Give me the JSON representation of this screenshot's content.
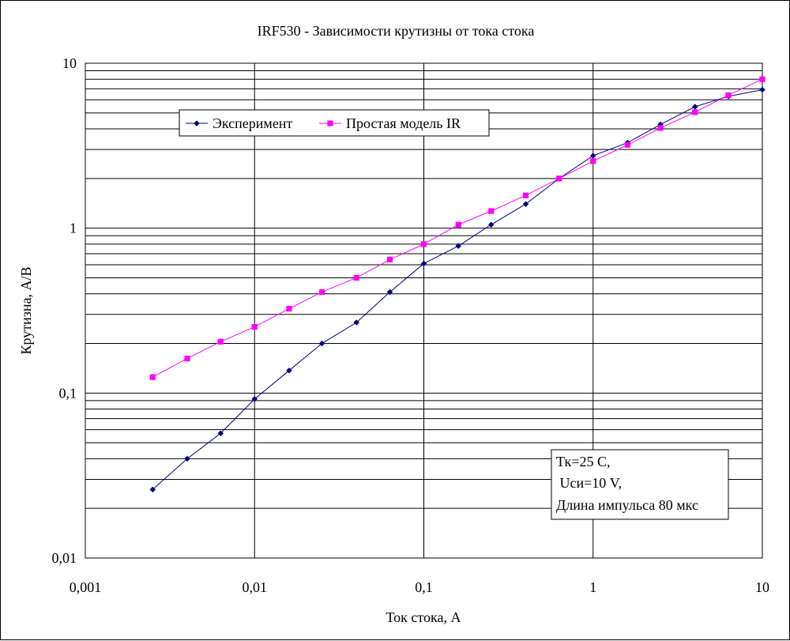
{
  "chart_data": {
    "type": "line",
    "title": "IRF530 - Зависимости крутизны от тока стока",
    "xlabel": "Ток стока, А",
    "ylabel": "Крутизна, А/В",
    "x_scale": "log",
    "y_scale": "log",
    "xlim": [
      0.001,
      10
    ],
    "ylim": [
      0.01,
      10
    ],
    "x_tick_labels": [
      "0,001",
      "0,01",
      "0,1",
      "1",
      "10"
    ],
    "y_tick_labels": [
      "0,01",
      "0,1",
      "1",
      "10"
    ],
    "grid": true,
    "legend_position": "top-left",
    "series": [
      {
        "name": "Эксперимент",
        "color": "#000080",
        "marker": "diamond",
        "x": [
          0.0025,
          0.004,
          0.0063,
          0.01,
          0.016,
          0.025,
          0.04,
          0.063,
          0.1,
          0.16,
          0.25,
          0.4,
          0.63,
          1.0,
          1.6,
          2.5,
          4.0,
          6.3,
          10
        ],
        "y": [
          0.026,
          0.04,
          0.057,
          0.092,
          0.137,
          0.2,
          0.268,
          0.41,
          0.61,
          0.78,
          1.05,
          1.4,
          2.0,
          2.75,
          3.3,
          4.25,
          5.45,
          6.3,
          6.9
        ]
      },
      {
        "name": "Простая модель IR",
        "color": "#ff00ff",
        "marker": "square",
        "x": [
          0.0025,
          0.004,
          0.0063,
          0.01,
          0.016,
          0.025,
          0.04,
          0.063,
          0.1,
          0.16,
          0.25,
          0.4,
          0.63,
          1.0,
          1.6,
          2.5,
          4.0,
          6.3,
          10
        ],
        "y": [
          0.125,
          0.162,
          0.205,
          0.252,
          0.325,
          0.41,
          0.5,
          0.645,
          0.8,
          1.05,
          1.27,
          1.58,
          2.0,
          2.55,
          3.2,
          4.05,
          5.05,
          6.4,
          8.0
        ]
      }
    ],
    "annotation": {
      "lines": [
        "Тк=25 С,",
        " Uси=10 V,",
        "Длина импульса 80 мкс"
      ]
    }
  }
}
